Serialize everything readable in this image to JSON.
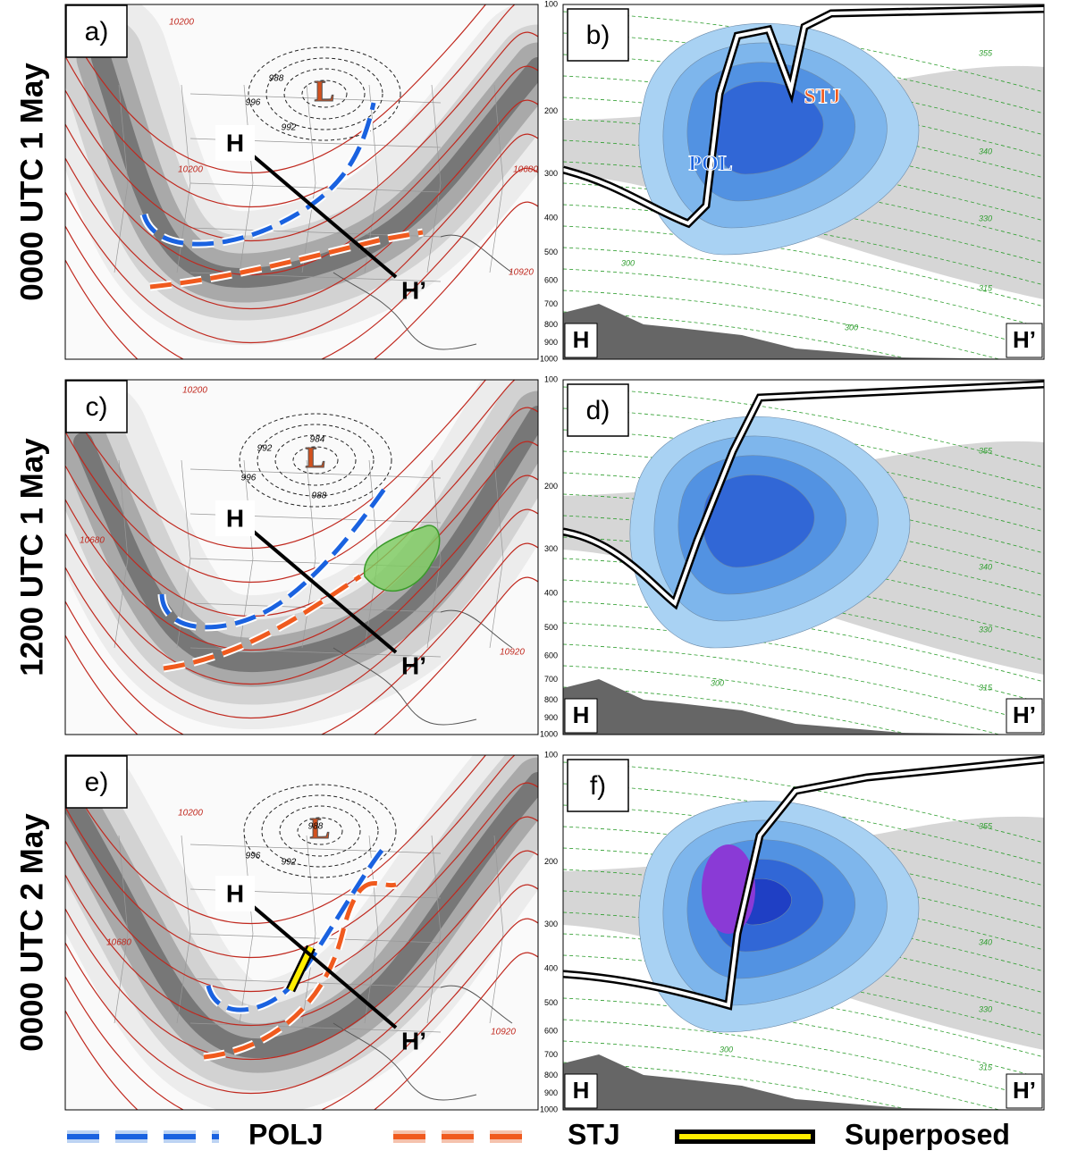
{
  "rows": [
    {
      "time_label": "0000 UTC 1 May",
      "map": {
        "panel_label": "a)",
        "low": "L",
        "section_start": "H",
        "section_end": "H’",
        "height_labels": [
          "10200",
          "10200",
          "10680",
          "10920"
        ],
        "pressure_labels": [
          "996",
          "988",
          "992"
        ]
      },
      "section": {
        "panel_label": "b)",
        "start": "H",
        "end": "H’",
        "jet_labels": [
          "STJ",
          "POL"
        ],
        "theta_labels": [
          "355",
          "340",
          "330",
          "315",
          "300",
          "300"
        ]
      }
    },
    {
      "time_label": "1200 UTC 1 May",
      "map": {
        "panel_label": "c)",
        "low": "L",
        "section_start": "H",
        "section_end": "H’",
        "height_labels": [
          "10200",
          "10680",
          "10920"
        ],
        "pressure_labels": [
          "992",
          "984",
          "996",
          "988"
        ]
      },
      "section": {
        "panel_label": "d)",
        "start": "H",
        "end": "H’",
        "theta_labels": [
          "355",
          "340",
          "330",
          "315",
          "300"
        ]
      }
    },
    {
      "time_label": "0000 UTC 2 May",
      "map": {
        "panel_label": "e)",
        "low": "L",
        "section_start": "H",
        "section_end": "H’",
        "height_labels": [
          "10200",
          "10680",
          "10920"
        ],
        "pressure_labels": [
          "988",
          "996",
          "992"
        ]
      },
      "section": {
        "panel_label": "f)",
        "start": "H",
        "end": "H’",
        "theta_labels": [
          "355",
          "340",
          "330",
          "315",
          "300"
        ]
      }
    }
  ],
  "pressure_axis": [
    100,
    200,
    300,
    400,
    500,
    600,
    700,
    800,
    900,
    1000
  ],
  "legend": [
    "POLJ",
    "STJ",
    "Superposed"
  ]
}
